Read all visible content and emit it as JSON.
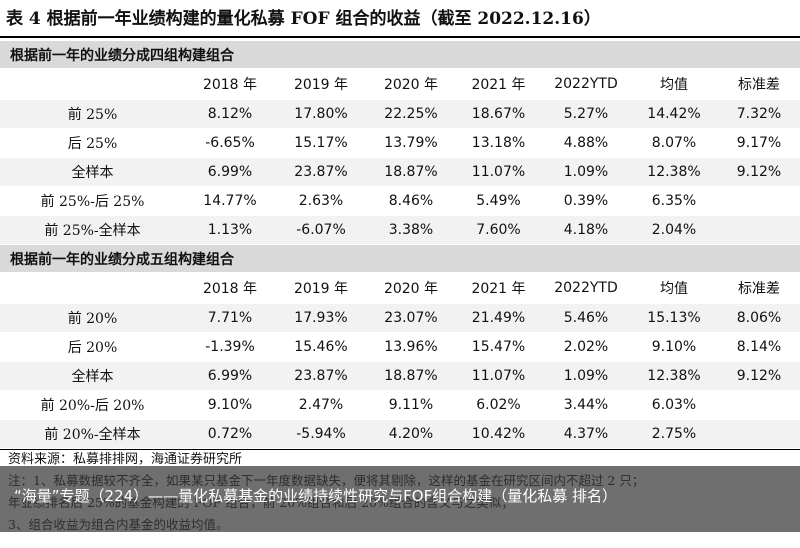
{
  "title": "表 4 根据前一年业绩构建的量化私募 FOF 组合的收益（截至 2022.12.16）",
  "sections": [
    {
      "heading": "根据前一年的业绩分成四组构建组合",
      "columns": [
        "2018 年",
        "2019 年",
        "2020 年",
        "2021 年",
        "2022YTD",
        "均值",
        "标准差"
      ],
      "rows": [
        [
          "前 25%",
          "8.12%",
          "17.80%",
          "22.25%",
          "18.67%",
          "5.27%",
          "14.42%",
          "7.32%"
        ],
        [
          "后 25%",
          "-6.65%",
          "15.17%",
          "13.79%",
          "13.18%",
          "4.88%",
          "8.07%",
          "9.17%"
        ],
        [
          "全样本",
          "6.99%",
          "23.87%",
          "18.87%",
          "11.07%",
          "1.09%",
          "12.38%",
          "9.12%"
        ],
        [
          "前 25%-后 25%",
          "14.77%",
          "2.63%",
          "8.46%",
          "5.49%",
          "0.39%",
          "6.35%"
        ],
        [
          "前 25%-全样本",
          "1.13%",
          "-6.07%",
          "3.38%",
          "7.60%",
          "4.18%",
          "2.04%"
        ]
      ]
    },
    {
      "heading": "根据前一年的业绩分成五组构建组合",
      "columns": [
        "2018 年",
        "2019 年",
        "2020 年",
        "2021 年",
        "2022YTD",
        "均值",
        "标准差"
      ],
      "rows": [
        [
          "前 20%",
          "7.71%",
          "17.93%",
          "23.07%",
          "21.49%",
          "5.46%",
          "15.13%",
          "8.06%"
        ],
        [
          "后 20%",
          "-1.39%",
          "15.46%",
          "13.96%",
          "15.47%",
          "2.02%",
          "9.10%",
          "8.14%"
        ],
        [
          "全样本",
          "6.99%",
          "23.87%",
          "18.87%",
          "11.07%",
          "1.09%",
          "12.38%",
          "9.12%"
        ],
        [
          "前 20%-后 20%",
          "9.10%",
          "2.47%",
          "9.11%",
          "6.02%",
          "3.44%",
          "6.03%"
        ],
        [
          "前 20%-全样本",
          "0.72%",
          "-5.94%",
          "4.20%",
          "10.42%",
          "4.37%",
          "2.75%"
        ]
      ]
    }
  ],
  "source": "资料来源：私募排排网，海通证券研究所",
  "notes": [
    "注：1、私募数据较不齐全，如果某只基金下一年度数据缺失，便将其剔除，这样的基金在研究区间内不超过 2 只；",
    "年业绩排名后 25%的基金构建的 FOF 组合，前 20%组合和后 20%组合的含义与之类似；",
    "3、组合收益为组合内基金的收益均值。"
  ],
  "caption": "“海量”专题（224）——量化私募基金的业绩持续性研究与FOF组合构建（量化私募 排名）"
}
